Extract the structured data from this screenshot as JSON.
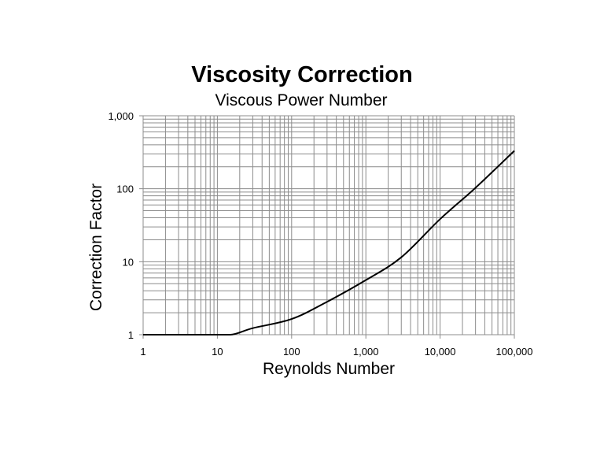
{
  "chart_data": {
    "type": "line",
    "title": "Viscosity Correction",
    "subtitle": "Viscous Power Number",
    "xlabel": "Reynolds Number",
    "ylabel": "Correction Factor",
    "x_scale": "log",
    "y_scale": "log",
    "xlim": [
      1,
      100000
    ],
    "ylim": [
      1,
      1000
    ],
    "x_ticks": [
      1,
      10,
      100,
      1000,
      10000,
      100000
    ],
    "x_tick_labels": [
      "1",
      "10",
      "100",
      "1,000",
      "10,000",
      "100,000"
    ],
    "y_ticks": [
      1,
      10,
      100,
      1000
    ],
    "y_tick_labels": [
      "1",
      "10",
      "100",
      "1,000"
    ],
    "grid": true,
    "line_color": "#000000",
    "grid_color": "#8c8c8c",
    "series": [
      {
        "x": [
          1,
          10,
          15,
          30,
          100,
          300,
          1000,
          3000,
          10000,
          30000,
          100000
        ],
        "y": [
          1,
          1,
          1,
          1.23,
          1.64,
          2.82,
          5.6,
          11.5,
          38.4,
          103,
          331
        ]
      }
    ]
  }
}
